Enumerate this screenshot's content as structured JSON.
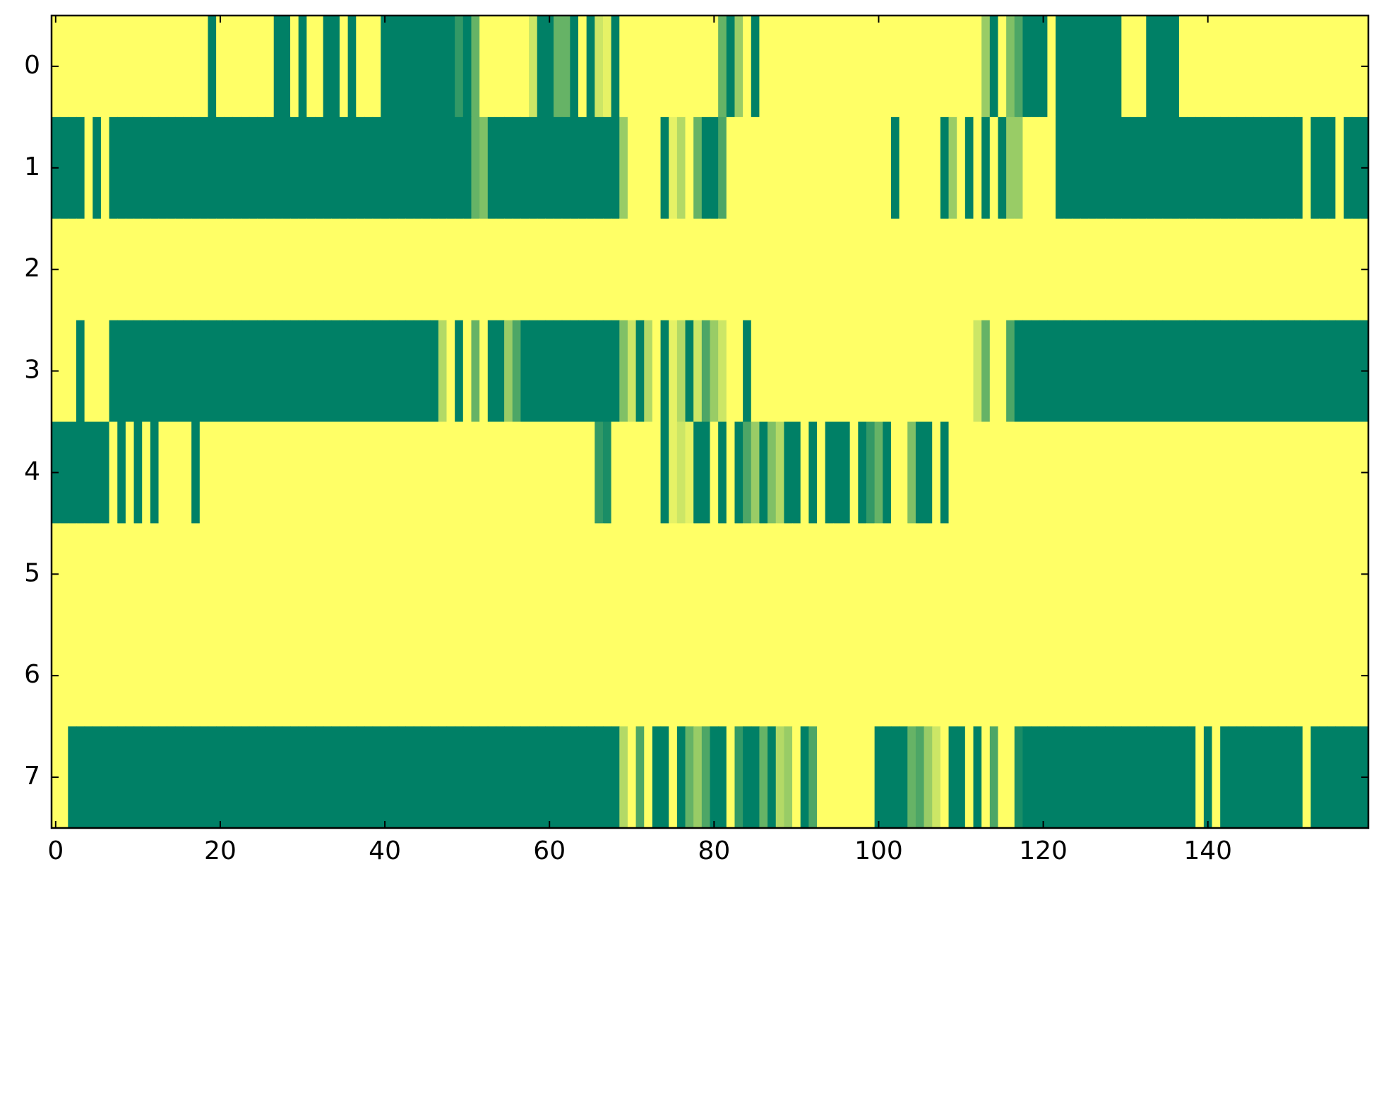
{
  "chart_data": {
    "type": "heatmap",
    "z": [
      [
        1,
        1,
        1,
        1,
        1,
        1,
        1,
        1,
        1,
        1,
        1,
        1,
        1,
        1,
        1,
        1,
        1,
        1,
        1,
        0,
        1,
        1,
        1,
        1,
        1,
        1,
        1,
        0,
        0,
        1,
        0,
        1,
        1,
        0,
        0,
        1,
        0,
        1,
        1,
        1,
        0,
        0,
        0,
        0,
        0,
        0,
        0,
        0,
        0,
        0.2,
        0,
        0.4,
        1,
        1,
        1,
        1,
        1,
        1,
        0.8,
        0,
        0,
        0.4,
        0.4,
        0,
        1,
        0,
        0.8,
        0.9,
        0,
        1,
        1,
        1,
        1,
        1,
        1,
        1,
        1,
        1,
        1,
        1,
        1,
        0.4,
        0,
        0.6,
        1,
        0,
        1,
        1,
        1,
        1,
        1,
        1,
        1,
        1,
        1,
        1,
        1,
        1,
        1,
        1,
        1,
        1,
        1,
        1,
        1,
        1,
        1,
        1,
        1,
        1,
        1,
        1,
        1,
        0.6,
        0,
        1,
        0.5,
        0.3,
        0,
        0,
        0,
        1,
        0,
        0,
        0,
        0,
        0,
        0,
        0,
        0,
        1,
        1,
        1,
        0,
        0,
        0,
        0,
        1,
        1,
        1,
        1,
        1,
        1,
        1,
        1,
        1,
        1,
        1,
        1,
        1,
        1,
        1,
        1,
        1,
        1,
        1,
        1,
        1,
        1,
        1
      ],
      [
        0,
        0,
        0,
        0,
        1,
        0,
        1,
        0,
        0,
        0,
        0,
        0,
        0,
        0,
        0,
        0,
        0,
        0,
        0,
        0,
        0,
        0,
        0,
        0,
        0,
        0,
        0,
        0,
        0,
        0,
        0,
        0,
        0,
        0,
        0,
        0,
        0,
        0,
        0,
        0,
        0,
        0,
        0,
        0,
        0,
        0,
        0,
        0,
        0,
        0,
        0,
        0.4,
        0.5,
        0,
        0,
        0,
        0,
        0,
        0,
        0,
        0,
        0,
        0,
        0,
        0,
        0,
        0,
        0,
        0,
        0.6,
        1,
        1,
        1,
        1,
        0,
        0.9,
        0.7,
        1,
        0.4,
        0,
        0,
        0.3,
        1,
        1,
        1,
        1,
        1,
        1,
        1,
        1,
        1,
        1,
        1,
        1,
        1,
        1,
        1,
        1,
        1,
        1,
        1,
        1,
        0,
        1,
        1,
        1,
        1,
        1,
        0,
        0.6,
        1,
        0,
        1,
        0,
        1,
        0,
        0.6,
        0.6,
        1,
        1,
        1,
        1,
        0,
        0,
        0,
        0,
        0,
        0,
        0,
        0,
        0,
        0,
        0,
        0,
        0,
        0,
        0,
        0,
        0,
        0,
        0,
        0,
        0,
        0,
        0,
        0,
        0,
        0,
        0,
        0,
        0,
        0,
        1,
        0,
        0,
        0,
        1,
        0,
        0,
        0
      ],
      [
        1,
        1,
        1,
        1,
        1,
        1,
        1,
        1,
        1,
        1,
        1,
        1,
        1,
        1,
        1,
        1,
        1,
        1,
        1,
        1,
        1,
        1,
        1,
        1,
        1,
        1,
        1,
        1,
        1,
        1,
        1,
        1,
        1,
        1,
        1,
        1,
        1,
        1,
        1,
        1,
        1,
        1,
        1,
        1,
        1,
        1,
        1,
        1,
        1,
        1,
        1,
        1,
        1,
        1,
        1,
        1,
        1,
        1,
        1,
        1,
        1,
        1,
        1,
        1,
        1,
        1,
        1,
        1,
        1,
        1,
        1,
        1,
        1,
        1,
        1,
        1,
        1,
        1,
        1,
        1,
        1,
        1,
        1,
        1,
        1,
        1,
        1,
        1,
        1,
        1,
        1,
        1,
        1,
        1,
        1,
        1,
        1,
        1,
        1,
        1,
        1,
        1,
        1,
        1,
        1,
        1,
        1,
        1,
        1,
        1,
        1,
        1,
        1,
        1,
        1,
        1,
        1,
        1,
        1,
        1,
        1,
        1,
        1,
        1,
        1,
        1,
        1,
        1,
        1,
        1,
        1,
        1,
        1,
        1,
        1,
        1,
        1,
        1,
        1,
        1,
        1,
        1,
        1,
        1,
        1,
        1,
        1,
        1,
        1,
        1,
        1,
        1,
        1,
        1,
        1,
        1,
        1,
        1,
        1,
        1
      ],
      [
        1,
        1,
        1,
        0,
        1,
        1,
        1,
        0,
        0,
        0,
        0,
        0,
        0,
        0,
        0,
        0,
        0,
        0,
        0,
        0,
        0,
        0,
        0,
        0,
        0,
        0,
        0,
        0,
        0,
        0,
        0,
        0,
        0,
        0,
        0,
        0,
        0,
        0,
        0,
        0,
        0,
        0,
        0,
        0,
        0,
        0,
        0,
        0.7,
        1,
        0,
        1,
        0.4,
        1,
        0,
        0,
        0.6,
        0.3,
        0,
        0,
        0,
        0,
        0,
        0,
        0,
        0,
        0,
        0,
        0,
        0,
        0.5,
        0.8,
        0,
        0.7,
        1,
        0,
        0.9,
        0.7,
        0,
        0.8,
        0.3,
        0.6,
        0.8,
        1,
        1,
        0,
        1,
        1,
        1,
        1,
        1,
        1,
        1,
        1,
        1,
        1,
        1,
        1,
        1,
        1,
        1,
        1,
        1,
        1,
        1,
        1,
        1,
        1,
        1,
        1,
        1,
        1,
        1,
        0.8,
        0.4,
        1,
        1,
        0.3,
        0,
        0,
        0,
        0,
        0,
        0,
        0,
        0,
        0,
        0,
        0,
        0,
        0,
        0,
        0,
        0,
        0,
        0,
        0,
        0,
        0,
        0,
        0,
        0,
        0,
        0,
        0,
        0,
        0,
        0,
        0,
        0,
        0,
        0,
        0,
        0,
        0,
        0,
        0,
        0,
        0,
        0,
        0
      ],
      [
        0,
        0,
        0,
        0,
        0,
        0,
        0,
        1,
        0,
        1,
        0,
        1,
        0,
        1,
        1,
        1,
        1,
        0,
        1,
        1,
        1,
        1,
        1,
        1,
        1,
        1,
        1,
        1,
        1,
        1,
        1,
        1,
        1,
        1,
        1,
        1,
        1,
        1,
        1,
        1,
        1,
        1,
        1,
        1,
        1,
        1,
        1,
        1,
        1,
        1,
        1,
        1,
        1,
        1,
        1,
        1,
        1,
        1,
        1,
        1,
        1,
        1,
        1,
        1,
        1,
        1,
        0.2,
        0.1,
        1,
        1,
        1,
        1,
        1,
        1,
        0,
        0.9,
        0.8,
        0.9,
        0,
        0,
        1,
        0,
        1,
        0,
        0.3,
        0.6,
        0,
        0.5,
        0.7,
        0,
        0,
        1,
        0,
        1,
        0,
        0,
        0,
        1,
        0,
        0.2,
        0.4,
        0,
        1,
        1,
        0.5,
        0,
        0,
        1,
        0,
        1,
        1,
        1,
        1,
        1,
        1,
        1,
        1,
        1,
        1,
        1,
        1,
        1,
        1,
        1,
        1,
        1,
        1,
        1,
        1,
        1,
        1,
        1,
        1,
        1,
        1,
        1,
        1,
        1,
        1,
        1,
        1,
        1,
        1,
        1,
        1,
        1,
        1,
        1,
        1,
        1,
        1,
        1,
        1,
        1,
        1,
        1,
        1,
        1,
        1,
        1
      ],
      [
        1,
        1,
        1,
        1,
        1,
        1,
        1,
        1,
        1,
        1,
        1,
        1,
        1,
        1,
        1,
        1,
        1,
        1,
        1,
        1,
        1,
        1,
        1,
        1,
        1,
        1,
        1,
        1,
        1,
        1,
        1,
        1,
        1,
        1,
        1,
        1,
        1,
        1,
        1,
        1,
        1,
        1,
        1,
        1,
        1,
        1,
        1,
        1,
        1,
        1,
        1,
        1,
        1,
        1,
        1,
        1,
        1,
        1,
        1,
        1,
        1,
        1,
        1,
        1,
        1,
        1,
        1,
        1,
        1,
        1,
        1,
        1,
        1,
        1,
        1,
        1,
        1,
        1,
        1,
        1,
        1,
        1,
        1,
        1,
        1,
        1,
        1,
        1,
        1,
        1,
        1,
        1,
        1,
        1,
        1,
        1,
        1,
        1,
        1,
        1,
        1,
        1,
        1,
        1,
        1,
        1,
        1,
        1,
        1,
        1,
        1,
        1,
        1,
        1,
        1,
        1,
        1,
        1,
        1,
        1,
        1,
        1,
        1,
        1,
        1,
        1,
        1,
        1,
        1,
        1,
        1,
        1,
        1,
        1,
        1,
        1,
        1,
        1,
        1,
        1,
        1,
        1,
        1,
        1,
        1,
        1,
        1,
        1,
        1,
        1,
        1,
        1,
        1,
        1,
        1,
        1,
        1,
        1,
        1,
        1
      ],
      [
        1,
        1,
        1,
        1,
        1,
        1,
        1,
        1,
        1,
        1,
        1,
        1,
        1,
        1,
        1,
        1,
        1,
        1,
        1,
        1,
        1,
        1,
        1,
        1,
        1,
        1,
        1,
        1,
        1,
        1,
        1,
        1,
        1,
        1,
        1,
        1,
        1,
        1,
        1,
        1,
        1,
        1,
        1,
        1,
        1,
        1,
        1,
        1,
        1,
        1,
        1,
        1,
        1,
        1,
        1,
        1,
        1,
        1,
        1,
        1,
        1,
        1,
        1,
        1,
        1,
        1,
        1,
        1,
        1,
        1,
        1,
        1,
        1,
        1,
        1,
        1,
        1,
        1,
        1,
        1,
        1,
        1,
        1,
        1,
        1,
        1,
        1,
        1,
        1,
        1,
        1,
        1,
        1,
        1,
        1,
        1,
        1,
        1,
        1,
        1,
        1,
        1,
        1,
        1,
        1,
        1,
        1,
        1,
        1,
        1,
        1,
        1,
        1,
        1,
        1,
        1,
        1,
        1,
        1,
        1,
        1,
        1,
        1,
        1,
        1,
        1,
        1,
        1,
        1,
        1,
        1,
        1,
        1,
        1,
        1,
        1,
        1,
        1,
        1,
        1,
        1,
        1,
        1,
        1,
        1,
        1,
        1,
        1,
        1,
        1,
        1,
        1,
        1,
        1,
        1,
        1,
        1,
        1,
        1,
        1
      ],
      [
        1,
        1,
        0,
        0,
        0,
        0,
        0,
        0,
        0,
        0,
        0,
        0,
        0,
        0,
        0,
        0,
        0,
        0,
        0,
        0,
        0,
        0,
        0,
        0,
        0,
        0,
        0,
        0,
        0,
        0,
        0,
        0,
        0,
        0,
        0,
        0,
        0,
        0,
        0,
        0,
        0,
        0,
        0,
        0,
        0,
        0,
        0,
        0,
        0,
        0,
        0,
        0,
        0,
        0,
        0,
        0,
        0,
        0,
        0,
        0,
        0,
        0,
        0,
        0,
        0,
        0,
        0,
        0,
        0,
        0.7,
        1,
        0.3,
        1,
        0,
        0,
        1,
        0,
        0.4,
        0.6,
        0.3,
        0,
        0,
        1,
        0.2,
        0,
        0,
        0.4,
        0,
        0.7,
        0.6,
        1,
        0,
        0.3,
        1,
        1,
        1,
        1,
        1,
        1,
        1,
        0,
        0,
        0,
        0,
        0.4,
        0.3,
        0.6,
        0.8,
        1,
        0,
        0,
        1,
        0,
        1,
        0.3,
        1,
        1,
        0.1,
        0,
        0,
        0,
        0,
        0,
        0,
        0,
        0,
        0,
        0,
        0,
        0,
        0,
        0,
        0,
        0,
        0,
        0,
        0,
        0,
        0,
        1,
        0,
        1,
        0,
        0,
        0,
        0,
        0,
        0,
        0,
        0,
        0,
        0,
        1,
        0,
        0,
        0,
        0,
        0,
        0,
        0
      ]
    ],
    "colormap": [
      "#008066",
      "#ffff66"
    ],
    "clim": [
      0,
      1
    ],
    "xlim": [
      -0.5,
      159.5
    ],
    "ylim": [
      7.5,
      -0.5
    ],
    "xticks": [
      0,
      20,
      40,
      60,
      80,
      100,
      120,
      140
    ],
    "yticks": [
      0,
      1,
      2,
      3,
      4,
      5,
      6,
      7
    ]
  }
}
